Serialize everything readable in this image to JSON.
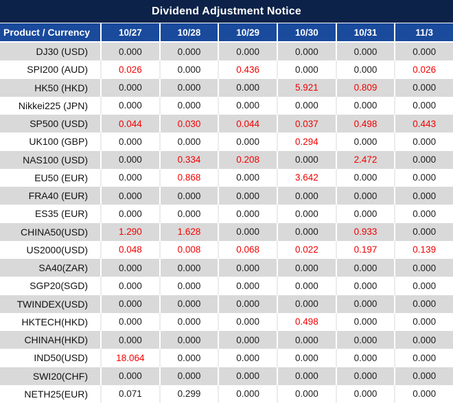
{
  "title": "Dividend Adjustment Notice",
  "colors": {
    "title_bg": "#0c2249",
    "header_bg": "#194a9c",
    "row_alt_bg": "#d9d9d9",
    "row_bg": "#ffffff",
    "highlight_red": "#f20000",
    "text": "#1c1c1c",
    "header_text": "#ffffff"
  },
  "chart_data": {
    "type": "table",
    "title": "Dividend Adjustment Notice",
    "columns": [
      "Product / Currency",
      "10/27",
      "10/28",
      "10/29",
      "10/30",
      "10/31",
      "11/3"
    ],
    "rows": [
      {
        "product": "DJ30 (USD)",
        "values": [
          "0.000",
          "0.000",
          "0.000",
          "0.000",
          "0.000",
          "0.000"
        ],
        "red_cols": []
      },
      {
        "product": "SPI200 (AUD)",
        "values": [
          "0.026",
          "0.000",
          "0.436",
          "0.000",
          "0.000",
          "0.026"
        ],
        "red_cols": [
          0,
          2,
          5
        ]
      },
      {
        "product": "HK50 (HKD)",
        "values": [
          "0.000",
          "0.000",
          "0.000",
          "5.921",
          "0.809",
          "0.000"
        ],
        "red_cols": [
          3,
          4
        ]
      },
      {
        "product": "Nikkei225 (JPN)",
        "values": [
          "0.000",
          "0.000",
          "0.000",
          "0.000",
          "0.000",
          "0.000"
        ],
        "red_cols": []
      },
      {
        "product": "SP500 (USD)",
        "values": [
          "0.044",
          "0.030",
          "0.044",
          "0.037",
          "0.498",
          "0.443"
        ],
        "red_cols": [
          0,
          1,
          2,
          3,
          4,
          5
        ]
      },
      {
        "product": "UK100 (GBP)",
        "values": [
          "0.000",
          "0.000",
          "0.000",
          "0.294",
          "0.000",
          "0.000"
        ],
        "red_cols": [
          3
        ]
      },
      {
        "product": "NAS100 (USD)",
        "values": [
          "0.000",
          "0.334",
          "0.208",
          "0.000",
          "2.472",
          "0.000"
        ],
        "red_cols": [
          1,
          2,
          4
        ]
      },
      {
        "product": "EU50 (EUR)",
        "values": [
          "0.000",
          "0.868",
          "0.000",
          "3.642",
          "0.000",
          "0.000"
        ],
        "red_cols": [
          1,
          3
        ]
      },
      {
        "product": "FRA40 (EUR)",
        "values": [
          "0.000",
          "0.000",
          "0.000",
          "0.000",
          "0.000",
          "0.000"
        ],
        "red_cols": []
      },
      {
        "product": "ES35 (EUR)",
        "values": [
          "0.000",
          "0.000",
          "0.000",
          "0.000",
          "0.000",
          "0.000"
        ],
        "red_cols": []
      },
      {
        "product": "CHINA50(USD)",
        "values": [
          "1.290",
          "1.628",
          "0.000",
          "0.000",
          "0.933",
          "0.000"
        ],
        "red_cols": [
          0,
          1,
          4
        ]
      },
      {
        "product": "US2000(USD)",
        "values": [
          "0.048",
          "0.008",
          "0.068",
          "0.022",
          "0.197",
          "0.139"
        ],
        "red_cols": [
          0,
          1,
          2,
          3,
          4,
          5
        ]
      },
      {
        "product": "SA40(ZAR)",
        "values": [
          "0.000",
          "0.000",
          "0.000",
          "0.000",
          "0.000",
          "0.000"
        ],
        "red_cols": []
      },
      {
        "product": "SGP20(SGD)",
        "values": [
          "0.000",
          "0.000",
          "0.000",
          "0.000",
          "0.000",
          "0.000"
        ],
        "red_cols": []
      },
      {
        "product": "TWINDEX(USD)",
        "values": [
          "0.000",
          "0.000",
          "0.000",
          "0.000",
          "0.000",
          "0.000"
        ],
        "red_cols": []
      },
      {
        "product": "HKTECH(HKD)",
        "values": [
          "0.000",
          "0.000",
          "0.000",
          "0.498",
          "0.000",
          "0.000"
        ],
        "red_cols": [
          3
        ]
      },
      {
        "product": "CHINAH(HKD)",
        "values": [
          "0.000",
          "0.000",
          "0.000",
          "0.000",
          "0.000",
          "0.000"
        ],
        "red_cols": []
      },
      {
        "product": "IND50(USD)",
        "values": [
          "18.064",
          "0.000",
          "0.000",
          "0.000",
          "0.000",
          "0.000"
        ],
        "red_cols": [
          0
        ]
      },
      {
        "product": "SWI20(CHF)",
        "values": [
          "0.000",
          "0.000",
          "0.000",
          "0.000",
          "0.000",
          "0.000"
        ],
        "red_cols": []
      },
      {
        "product": "NETH25(EUR)",
        "values": [
          "0.071",
          "0.299",
          "0.000",
          "0.000",
          "0.000",
          "0.000"
        ],
        "red_cols": []
      }
    ]
  }
}
